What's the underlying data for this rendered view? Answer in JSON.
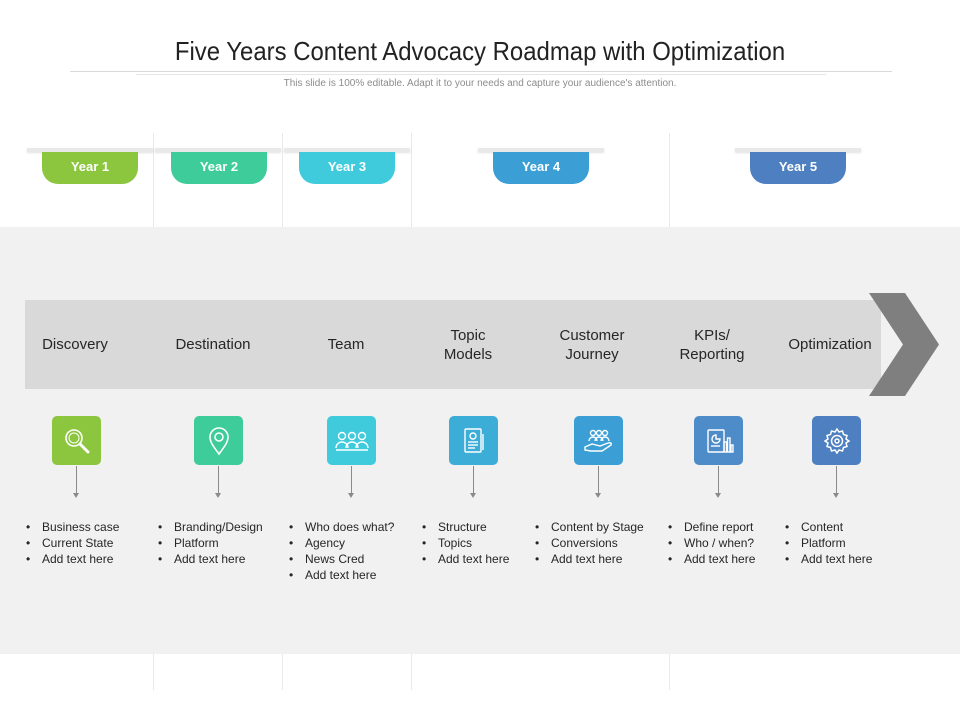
{
  "header": {
    "title": "Five Years Content Advocacy Roadmap with Optimization",
    "subtitle": "This slide is 100% editable. Adapt it to your needs and capture your audience's attention."
  },
  "years": [
    {
      "label": "Year 1",
      "color": "#8cc63e"
    },
    {
      "label": "Year 2",
      "color": "#3dcc9a"
    },
    {
      "label": "Year 3",
      "color": "#3fcbdc"
    },
    {
      "label": "Year 4",
      "color": "#3b9fd6"
    },
    {
      "label": "Year 5",
      "color": "#4d7fc1"
    }
  ],
  "stages": [
    {
      "label": "Discovery",
      "icon": "magnifier-icon",
      "color": "#8cc63e",
      "bullets": [
        "Business case",
        "Current State",
        "Add text here"
      ]
    },
    {
      "label": "Destination",
      "icon": "location-pin-icon",
      "color": "#3dcc9a",
      "bullets": [
        "Branding/Design",
        "Platform",
        "Add text here"
      ]
    },
    {
      "label": "Team",
      "icon": "team-icon",
      "color": "#3fcbdc",
      "bullets": [
        "Who does what?",
        "Agency",
        "News Cred",
        "Add text here"
      ]
    },
    {
      "label": "Topic\nModels",
      "icon": "document-icon",
      "color": "#3badd6",
      "bullets": [
        "Structure",
        "Topics",
        "Add text here"
      ]
    },
    {
      "label": "Customer\nJourney",
      "icon": "customers-hand-icon",
      "color": "#3b9fd6",
      "bullets": [
        "Content by Stage",
        "Conversions",
        "Add text here"
      ]
    },
    {
      "label": "KPIs/\nReporting",
      "icon": "report-chart-icon",
      "color": "#4d8cc9",
      "bullets": [
        "Define report",
        "Who / when?",
        "Add text here"
      ]
    },
    {
      "label": "Optimization",
      "icon": "gear-icon",
      "color": "#4d7fc1",
      "bullets": [
        "Content",
        "Platform",
        "Add text here"
      ]
    }
  ],
  "colors": {
    "band": "#f1f1f1",
    "arrow": "#d9d9d9",
    "chevron": "#7f7f7f"
  }
}
